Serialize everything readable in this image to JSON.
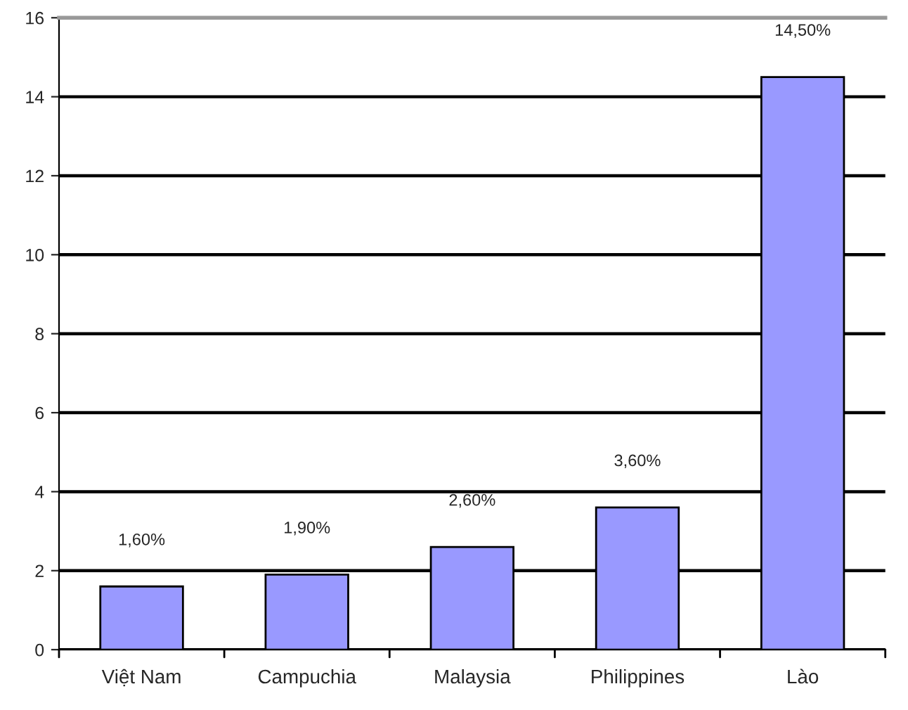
{
  "chart_data": {
    "type": "bar",
    "categories": [
      "Việt Nam",
      "Campuchia",
      "Malaysia",
      "Philippines",
      "Lào"
    ],
    "values": [
      1.6,
      1.9,
      2.6,
      3.6,
      14.5
    ],
    "value_labels": [
      "1,60%",
      "1,90%",
      "2,60%",
      "3,60%",
      "14,50%"
    ],
    "color": "#9999ff",
    "ylim": [
      0,
      16
    ],
    "yticks": [
      0,
      2,
      4,
      6,
      8,
      10,
      12,
      14,
      16
    ],
    "grid": "y",
    "legend": false
  }
}
